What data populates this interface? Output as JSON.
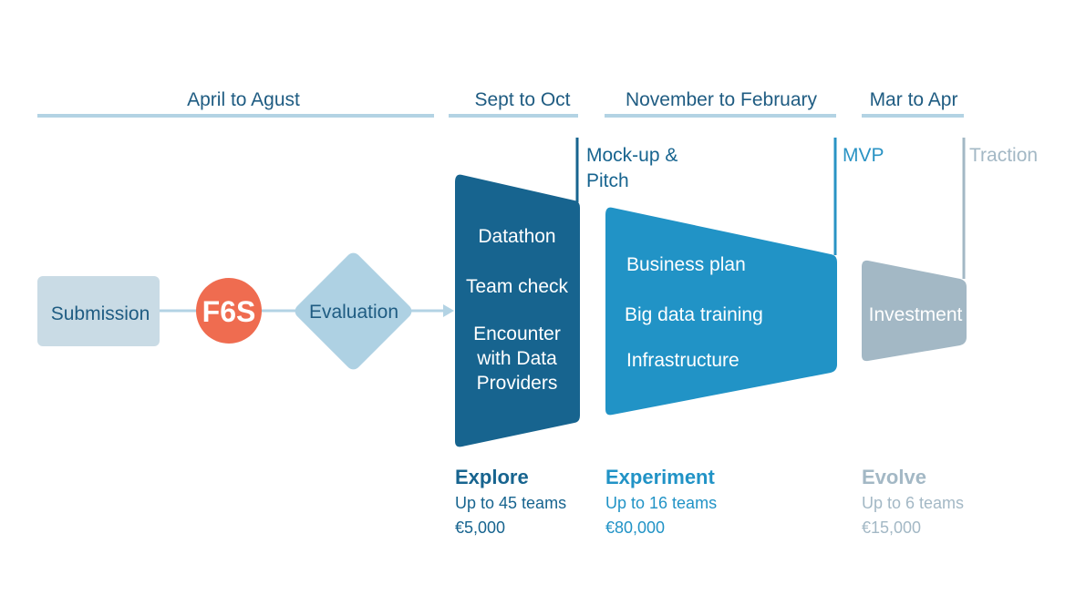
{
  "periods": [
    {
      "label": "April to Agust"
    },
    {
      "label": "Sept to Oct"
    },
    {
      "label": "November to February"
    },
    {
      "label": "Mar to Apr"
    }
  ],
  "milestones": [
    {
      "line1": "Mock-up &",
      "line2": "Pitch",
      "color": "#17648f"
    },
    {
      "line1": "MVP",
      "line2": "",
      "color": "#2a93c4"
    },
    {
      "line1": "Traction",
      "line2": "",
      "color": "#a3b8c5"
    }
  ],
  "entry_flow": {
    "submission": "Submission",
    "badge": "F6S",
    "evaluation": "Evaluation"
  },
  "stages": [
    {
      "items": [
        "Datathon",
        "Team check",
        "Encounter",
        "with Data",
        "Providers"
      ],
      "name": "Explore",
      "teams": "Up to 45 teams",
      "amount": "€5,000",
      "color": "#17648f"
    },
    {
      "items": [
        "Business plan",
        "Big data training",
        "Infrastructure"
      ],
      "name": "Experiment",
      "teams": "Up to 16 teams",
      "amount": "€80,000",
      "color": "#2193c6"
    },
    {
      "items": [
        "Investment"
      ],
      "name": "Evolve",
      "teams": "Up to 6 teams",
      "amount": "€15,000",
      "color": "#a3b8c5"
    }
  ],
  "colors": {
    "timeline": "#b3d3e4",
    "submission_box": "#c9dbe5",
    "badge": "#ef6c50",
    "diamond": "#aed1e3",
    "connector": "#b3d3e4"
  }
}
